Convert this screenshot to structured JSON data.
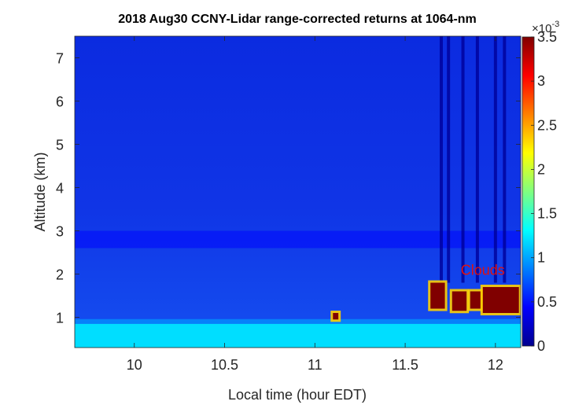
{
  "chart_data": {
    "type": "heatmap",
    "title": "2018 Aug30 CCNY-Lidar range-corrected returns at 1064-nm",
    "xlabel": "Local time (hour EDT)",
    "ylabel": "Altitude (km)",
    "xlim": [
      9.67,
      12.14
    ],
    "ylim": [
      0.3,
      7.5
    ],
    "x_ticks": [
      10,
      10.5,
      11,
      11.5,
      12
    ],
    "x_tick_labels": [
      "10",
      "10.5",
      "11",
      "11.5",
      "12"
    ],
    "y_ticks": [
      1,
      2,
      3,
      4,
      5,
      6,
      7
    ],
    "y_tick_labels": [
      "1",
      "2",
      "3",
      "4",
      "5",
      "6",
      "7"
    ],
    "colorbar": {
      "colormap": "jet",
      "clim": [
        0,
        3.5
      ],
      "ticks": [
        0,
        0.5,
        1,
        1.5,
        2,
        2.5,
        3,
        3.5
      ],
      "tick_labels": [
        "0",
        "0.5",
        "1",
        "1.5",
        "2",
        "2.5",
        "3",
        "3.5"
      ],
      "multiplier_base": "×10",
      "multiplier_exponent": "-3"
    },
    "annotation": {
      "text": "Clouds",
      "x": 11.93,
      "y": 1.98,
      "color": "#e01010"
    },
    "features": {
      "boundary_layer": {
        "top_km": 0.85,
        "value": 1.2
      },
      "aerosol_layer": {
        "altitude_km": [
          2.6,
          3.0
        ],
        "value": 0.45
      },
      "cloud_patches": [
        {
          "x": [
            11.64,
            11.72
          ],
          "y": [
            1.2,
            1.8
          ],
          "value": 3.5
        },
        {
          "x": [
            11.76,
            11.84
          ],
          "y": [
            1.15,
            1.6
          ],
          "value": 3.5
        },
        {
          "x": [
            11.86,
            11.92
          ],
          "y": [
            1.2,
            1.6
          ],
          "value": 3.5
        },
        {
          "x": [
            11.93,
            12.13
          ],
          "y": [
            1.1,
            1.7
          ],
          "value": 3.5
        },
        {
          "x": [
            11.1,
            11.13
          ],
          "y": [
            0.95,
            1.1
          ],
          "value": 3.5
        }
      ],
      "vertical_streaks_x": [
        11.7,
        11.74,
        11.82,
        11.9,
        12.0,
        12.05
      ]
    }
  }
}
